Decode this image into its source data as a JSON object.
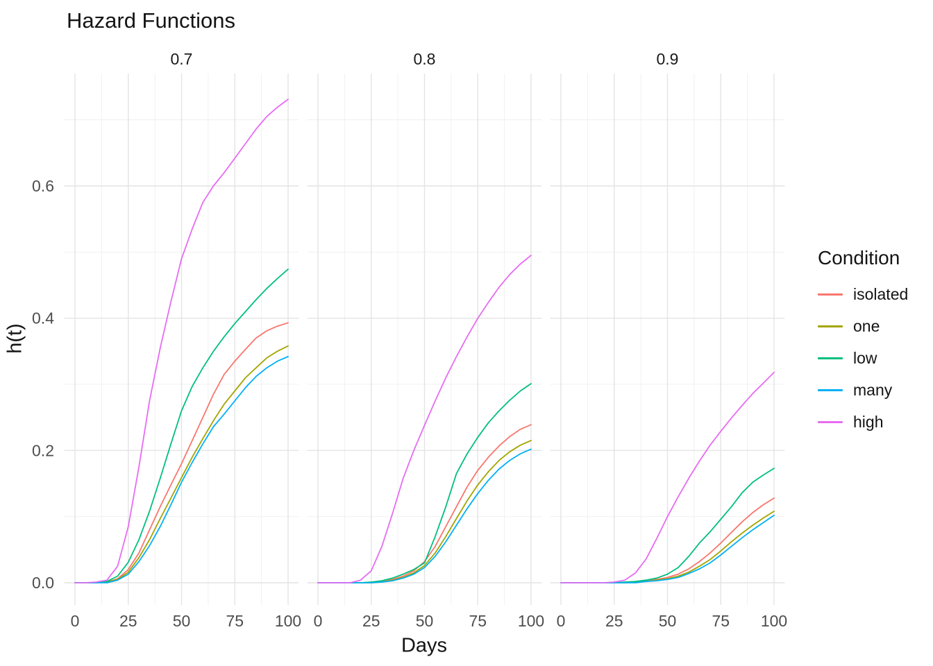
{
  "chart_data": {
    "type": "line",
    "title": "Hazard Functions",
    "xlabel": "Days",
    "ylabel": "h(t)",
    "legend_title": "Condition",
    "legend_position": "right",
    "grid": true,
    "facets": [
      "0.7",
      "0.8",
      "0.9"
    ],
    "x_range": [
      0,
      100
    ],
    "y_range": [
      0,
      0.75
    ],
    "x_ticks": [
      0,
      25,
      50,
      75,
      100
    ],
    "x_minor_ticks": [
      12.5,
      37.5,
      62.5,
      87.5
    ],
    "y_ticks": [
      "0.0",
      "0.2",
      "0.4",
      "0.6"
    ],
    "y_minor_ticks": [
      0.1,
      0.3,
      0.5,
      0.7
    ],
    "days": [
      0,
      5,
      10,
      15,
      20,
      25,
      30,
      35,
      40,
      45,
      50,
      55,
      60,
      65,
      70,
      75,
      80,
      85,
      90,
      95,
      100
    ],
    "series": [
      {
        "name": "isolated",
        "color": "#F8766D",
        "values": {
          "0.7": [
            0,
            0,
            0,
            0.001,
            0.006,
            0.02,
            0.045,
            0.08,
            0.115,
            0.148,
            0.18,
            0.215,
            0.25,
            0.285,
            0.315,
            0.335,
            0.353,
            0.37,
            0.381,
            0.388,
            0.393
          ],
          "0.8": [
            0,
            0,
            0,
            0,
            0,
            0,
            0.002,
            0.005,
            0.01,
            0.018,
            0.032,
            0.055,
            0.085,
            0.115,
            0.145,
            0.17,
            0.19,
            0.207,
            0.221,
            0.232,
            0.239
          ],
          "0.9": [
            0,
            0,
            0,
            0,
            0,
            0,
            0,
            0.001,
            0.003,
            0.005,
            0.008,
            0.013,
            0.021,
            0.032,
            0.045,
            0.06,
            0.076,
            0.092,
            0.106,
            0.118,
            0.128
          ]
        }
      },
      {
        "name": "one",
        "color": "#A3A500",
        "values": {
          "0.7": [
            0,
            0,
            0,
            0.001,
            0.005,
            0.016,
            0.038,
            0.065,
            0.097,
            0.128,
            0.159,
            0.19,
            0.218,
            0.245,
            0.27,
            0.29,
            0.31,
            0.325,
            0.34,
            0.35,
            0.358
          ],
          "0.8": [
            0,
            0,
            0,
            0,
            0,
            0,
            0.001,
            0.004,
            0.008,
            0.015,
            0.026,
            0.045,
            0.07,
            0.097,
            0.124,
            0.148,
            0.168,
            0.185,
            0.198,
            0.208,
            0.215
          ],
          "0.9": [
            0,
            0,
            0,
            0,
            0,
            0,
            0,
            0.001,
            0.002,
            0.004,
            0.006,
            0.01,
            0.016,
            0.025,
            0.035,
            0.048,
            0.062,
            0.075,
            0.087,
            0.098,
            0.108
          ]
        }
      },
      {
        "name": "low",
        "color": "#00BF7D",
        "values": {
          "0.7": [
            0,
            0,
            0,
            0.002,
            0.01,
            0.031,
            0.065,
            0.108,
            0.158,
            0.21,
            0.26,
            0.297,
            0.325,
            0.35,
            0.372,
            0.392,
            0.41,
            0.428,
            0.445,
            0.46,
            0.474
          ],
          "0.8": [
            0,
            0,
            0,
            0,
            0,
            0.001,
            0.003,
            0.007,
            0.013,
            0.02,
            0.03,
            0.07,
            0.115,
            0.165,
            0.195,
            0.22,
            0.242,
            0.26,
            0.276,
            0.29,
            0.301
          ],
          "0.9": [
            0,
            0,
            0,
            0,
            0,
            0,
            0.001,
            0.002,
            0.004,
            0.007,
            0.013,
            0.023,
            0.04,
            0.06,
            0.077,
            0.096,
            0.115,
            0.136,
            0.152,
            0.163,
            0.173
          ]
        }
      },
      {
        "name": "many",
        "color": "#00B0F6",
        "values": {
          "0.7": [
            0,
            0,
            0,
            0,
            0.004,
            0.013,
            0.032,
            0.056,
            0.085,
            0.118,
            0.152,
            0.182,
            0.21,
            0.236,
            0.255,
            0.275,
            0.295,
            0.312,
            0.325,
            0.335,
            0.342
          ],
          "0.8": [
            0,
            0,
            0,
            0,
            0,
            0,
            0.001,
            0.003,
            0.007,
            0.013,
            0.023,
            0.04,
            0.062,
            0.087,
            0.112,
            0.135,
            0.155,
            0.172,
            0.185,
            0.195,
            0.202
          ],
          "0.9": [
            0,
            0,
            0,
            0,
            0,
            0,
            0,
            0,
            0.002,
            0.003,
            0.005,
            0.008,
            0.014,
            0.021,
            0.03,
            0.042,
            0.055,
            0.068,
            0.08,
            0.091,
            0.102
          ]
        }
      },
      {
        "name": "high",
        "color": "#E76BF3",
        "values": {
          "0.7": [
            0,
            0,
            0.001,
            0.004,
            0.025,
            0.085,
            0.175,
            0.275,
            0.355,
            0.425,
            0.49,
            0.535,
            0.575,
            0.6,
            0.62,
            0.642,
            0.664,
            0.686,
            0.705,
            0.719,
            0.731
          ],
          "0.8": [
            0,
            0,
            0,
            0,
            0.004,
            0.018,
            0.055,
            0.105,
            0.158,
            0.2,
            0.238,
            0.275,
            0.31,
            0.342,
            0.372,
            0.4,
            0.424,
            0.447,
            0.466,
            0.482,
            0.495
          ],
          "0.9": [
            0,
            0,
            0,
            0,
            0,
            0.001,
            0.004,
            0.015,
            0.036,
            0.067,
            0.1,
            0.13,
            0.158,
            0.184,
            0.208,
            0.229,
            0.249,
            0.268,
            0.286,
            0.302,
            0.318
          ]
        }
      }
    ],
    "style_colors": {
      "grid_major": "#E4E4E4",
      "grid_minor": "#F0F0F0",
      "axis_text": "#4D4D4D",
      "strip_text": "#1A1A1A"
    }
  }
}
